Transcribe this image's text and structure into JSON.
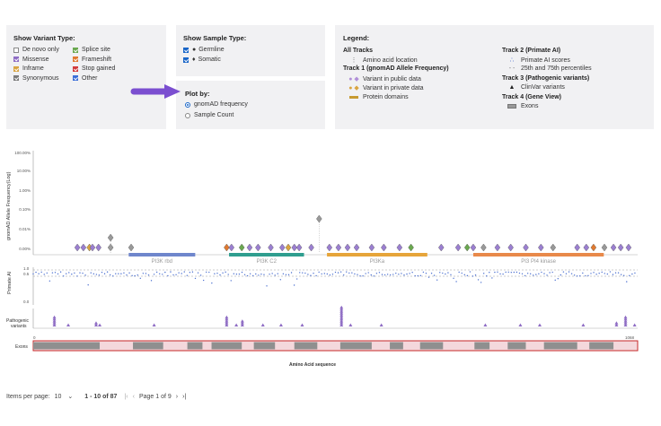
{
  "filters": {
    "variant_type": {
      "title": "Show Variant Type:",
      "items": [
        {
          "label": "De novo only",
          "checked": false,
          "color": "#ffffff"
        },
        {
          "label": "Splice site",
          "checked": true,
          "color": "#6aa84f"
        },
        {
          "label": "Missense",
          "checked": true,
          "color": "#8e6cc4"
        },
        {
          "label": "Frameshift",
          "checked": true,
          "color": "#e07a30"
        },
        {
          "label": "Inframe",
          "checked": true,
          "color": "#d9a441"
        },
        {
          "label": "Stop gained",
          "checked": true,
          "color": "#d23b3b"
        },
        {
          "label": "Synonymous",
          "checked": true,
          "color": "#7a7a7a"
        },
        {
          "label": "Other",
          "checked": true,
          "color": "#3a6ed8"
        }
      ]
    },
    "sample_type": {
      "title": "Show Sample Type:",
      "items": [
        {
          "label": "Germline",
          "symbol": "●",
          "checked": true
        },
        {
          "label": "Somatic",
          "symbol": "♦",
          "checked": true
        }
      ]
    },
    "plot_by": {
      "title": "Plot by:",
      "options": [
        {
          "label": "gnomAD frequency",
          "selected": true
        },
        {
          "label": "Sample Count",
          "selected": false
        }
      ]
    }
  },
  "legend": {
    "title": "Legend:",
    "all_tracks": "All Tracks",
    "amino_acid_location": "Amino acid location",
    "track1_title": "Track 1 (gnomAD Allele Frequency)",
    "variant_public": "Variant in public data",
    "variant_private": "Variant in private data",
    "protein_domains": "Protein domains",
    "track2_title": "Track 2 (Primate AI)",
    "primate_scores": "Primate AI scores",
    "percentiles": "25th and 75th percentiles",
    "track3_title": "Track 3 (Pathogenic variants)",
    "clinvar": "ClinVar variants",
    "track4_title": "Track 4 (Gene View)",
    "exons": "Exons"
  },
  "plot": {
    "y_axis_label": "gnomAD Allele Frequency(Log)",
    "y_ticks": [
      "100.00%",
      "10.00%",
      "1.00%",
      "0.10%",
      "0.01%",
      "0.00%"
    ],
    "domains": [
      {
        "label": "PI3K rbd",
        "start": 0.158,
        "end": 0.268,
        "color": "#6f86cc"
      },
      {
        "label": "PI3K C2",
        "start": 0.324,
        "end": 0.448,
        "color": "#2f9e8f"
      },
      {
        "label": "PI3Ka",
        "start": 0.486,
        "end": 0.652,
        "color": "#e6a53a"
      },
      {
        "label": "PI3 PI4 kinase",
        "start": 0.728,
        "end": 0.944,
        "color": "#e8894a"
      }
    ],
    "primate_label": "Primate AI",
    "primate_ticks": [
      "1.0",
      "0.5",
      "0.0"
    ],
    "pathogenic_label": "Pathogenic variants",
    "exons_label": "Exons",
    "exon_start": "0",
    "exon_end": "1068",
    "x_axis_label": "Amino Acid sequence"
  },
  "pagination": {
    "items_per_page_label": "Items per page:",
    "items_per_page": "10",
    "range": "1 - 10 of 87",
    "page_label": "Page 1 of 9"
  }
}
